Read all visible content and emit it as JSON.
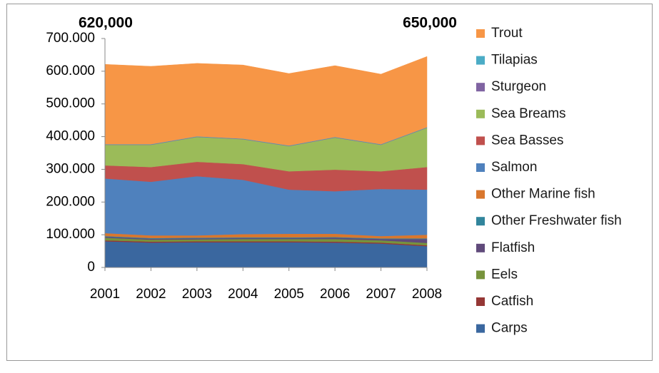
{
  "chart_data": {
    "type": "stacked_area",
    "categories": [
      "2001",
      "2002",
      "2003",
      "2004",
      "2005",
      "2006",
      "2007",
      "2008"
    ],
    "series": [
      {
        "name": "Carps",
        "color": "#3a679f",
        "values": [
          80000,
          76000,
          77000,
          77000,
          77000,
          76000,
          73000,
          65000
        ]
      },
      {
        "name": "Catfish",
        "color": "#953735",
        "values": [
          3000,
          3000,
          3000,
          3000,
          3000,
          3000,
          3000,
          3000
        ]
      },
      {
        "name": "Eels",
        "color": "#77933c",
        "values": [
          8000,
          6000,
          6000,
          7000,
          7000,
          8000,
          7000,
          7000
        ]
      },
      {
        "name": "Flatfish",
        "color": "#604a7b",
        "values": [
          3000,
          3000,
          3000,
          3000,
          3000,
          4000,
          4000,
          12000
        ]
      },
      {
        "name": "Other Freshwater fish",
        "color": "#31859c",
        "values": [
          2000,
          2000,
          2000,
          2000,
          2000,
          2000,
          2000,
          2000
        ]
      },
      {
        "name": "Other Marine fish",
        "color": "#d9772e",
        "values": [
          9000,
          8000,
          7000,
          10000,
          11000,
          10000,
          7000,
          11000
        ]
      },
      {
        "name": "Salmon",
        "color": "#4f81bd",
        "values": [
          167000,
          164000,
          181000,
          166000,
          135000,
          130000,
          144000,
          138000
        ]
      },
      {
        "name": "Sea Basses",
        "color": "#c0504d",
        "values": [
          40000,
          45000,
          44000,
          48000,
          56000,
          66000,
          54000,
          69000
        ]
      },
      {
        "name": "Sea Breams",
        "color": "#9bbb59",
        "values": [
          63000,
          68000,
          76000,
          76000,
          77000,
          98000,
          81000,
          120000
        ]
      },
      {
        "name": "Sturgeon",
        "color": "#8064a2",
        "values": [
          1000,
          1000,
          1000,
          1000,
          1000,
          1000,
          1000,
          1000
        ]
      },
      {
        "name": "Tilapias",
        "color": "#4bacc6",
        "values": [
          1000,
          1000,
          1000,
          1000,
          1000,
          1000,
          1000,
          1000
        ]
      },
      {
        "name": "Trout",
        "color": "#f79646",
        "values": [
          244000,
          238000,
          223000,
          225000,
          220000,
          218000,
          214000,
          216000
        ]
      }
    ],
    "ylim": [
      0,
      700000
    ],
    "yticks": [
      0,
      {
        "value": 100000,
        "label": "100.000"
      },
      {
        "value": 200000,
        "label": "200.000"
      },
      {
        "value": 300000,
        "label": "300.000"
      },
      {
        "value": 400000,
        "label": "400.000"
      },
      {
        "value": 500000,
        "label": "500.000"
      },
      {
        "value": 600000,
        "label": "600.000"
      },
      {
        "value": 700000,
        "label": "700.000"
      }
    ],
    "grid": false,
    "legend": "right",
    "annotations": [
      "620,000",
      "650,000"
    ]
  }
}
